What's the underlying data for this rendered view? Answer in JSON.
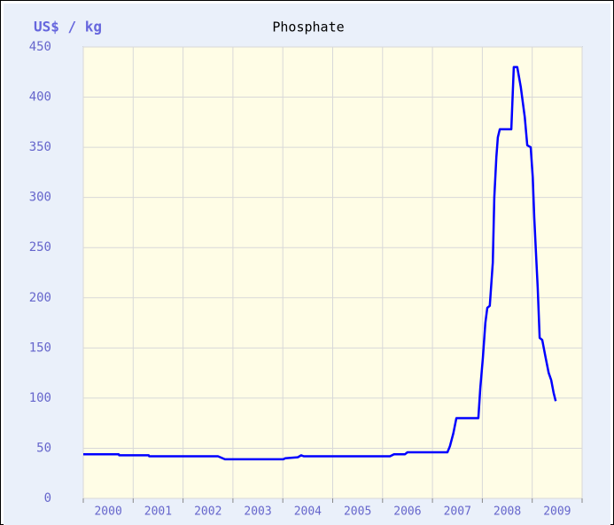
{
  "chart_data": {
    "type": "line",
    "title": "Phosphate",
    "y_label": "US$ / kg",
    "categories": [
      "2000",
      "2001",
      "2002",
      "2003",
      "2004",
      "2005",
      "2006",
      "2007",
      "2008",
      "2009"
    ],
    "xlim": [
      2000,
      2010
    ],
    "xticks": [
      2000,
      2001,
      2002,
      2003,
      2004,
      2005,
      2006,
      2007,
      2008,
      2009,
      2010
    ],
    "ylim": [
      0,
      450
    ],
    "yticks": [
      0,
      50,
      100,
      150,
      200,
      250,
      300,
      350,
      400,
      450
    ],
    "grid": true,
    "color": "#0000ff",
    "x": [
      2000.0,
      2000.71,
      2000.72,
      2001.31,
      2001.32,
      2002.7,
      2002.84,
      2004.01,
      2004.05,
      2004.3,
      2004.37,
      2004.42,
      2006.15,
      2006.23,
      2006.45,
      2006.5,
      2007.3,
      2007.35,
      2007.42,
      2007.48,
      2007.92,
      2007.96,
      2008.01,
      2008.06,
      2008.1,
      2008.15,
      2008.21,
      2008.24,
      2008.28,
      2008.31,
      2008.35,
      2008.58,
      2008.63,
      2008.7,
      2008.77,
      2008.85,
      2008.9,
      2008.97,
      2009.01,
      2009.04,
      2009.08,
      2009.11,
      2009.15,
      2009.2,
      2009.27,
      2009.33,
      2009.38,
      2009.43,
      2009.47
    ],
    "values": [
      44,
      44,
      43,
      43,
      42,
      42,
      39,
      39,
      40,
      41,
      43,
      42,
      42,
      44,
      44,
      46,
      46,
      52,
      65,
      80,
      80,
      110,
      140,
      175,
      190,
      192,
      235,
      300,
      340,
      360,
      368,
      368,
      430,
      430,
      410,
      380,
      352,
      350,
      320,
      280,
      240,
      210,
      160,
      158,
      140,
      125,
      118,
      105,
      97
    ]
  }
}
